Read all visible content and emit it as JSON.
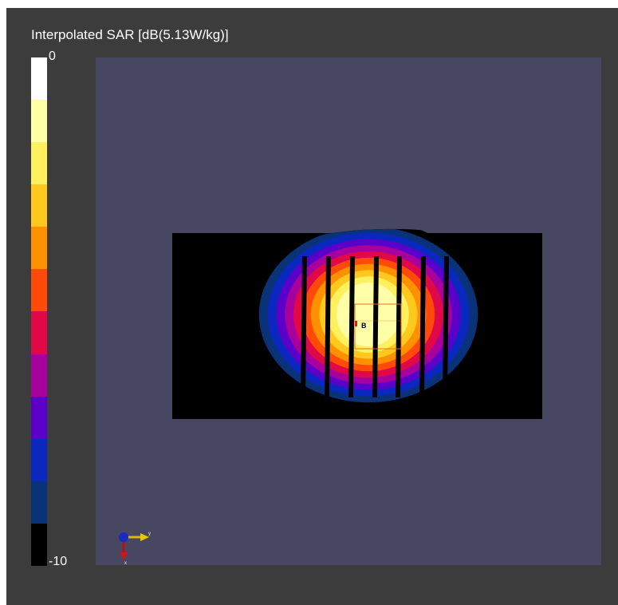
{
  "title": "Interpolated SAR [dB(5.13W/kg)]",
  "legend": {
    "max_label": "0",
    "min_label": "-10",
    "colors": [
      "#ffffff",
      "#ffffa8",
      "#fff060",
      "#ffc81e",
      "#ff9000",
      "#ff4a0a",
      "#e00846",
      "#a8009c",
      "#5a00c8",
      "#0a28c0",
      "#0a3278",
      "#000000"
    ]
  },
  "viewport": {
    "background": "#474761",
    "probe_label": "B",
    "axes": {
      "y_label": "y",
      "x_label": "x"
    }
  }
}
